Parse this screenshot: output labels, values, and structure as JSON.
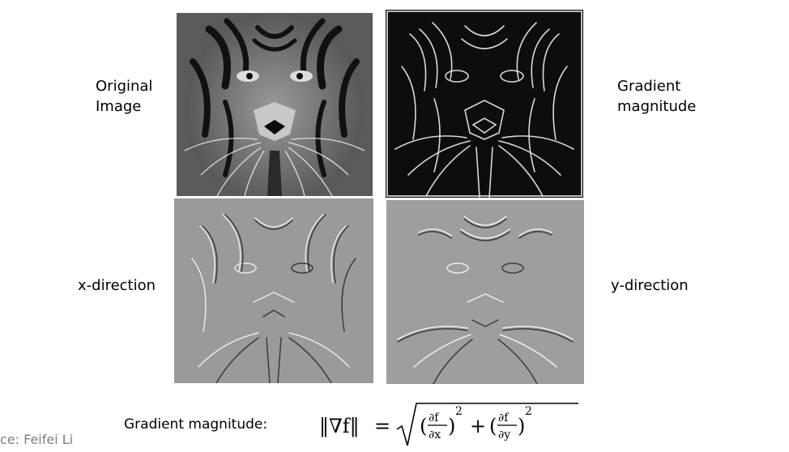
{
  "labels": {
    "original": [
      "Original",
      "Image"
    ],
    "gradient": [
      "Gradient",
      "magnitude"
    ],
    "x_direction": "x-direction",
    "y_direction": "y-direction"
  },
  "formula": {
    "label": "Gradient magnitude:",
    "lhs": "‖∇f‖",
    "equals": "=",
    "df": "∂f",
    "dx": "∂x",
    "dy": "∂y",
    "power": "2",
    "plus": "+"
  },
  "credit": "ce: Feifei Li",
  "colors": {
    "text": "#000000",
    "credit": "#7a7f86",
    "gradient_bg": "#0d0d0d",
    "directional_bg": "#9c9c9c"
  }
}
